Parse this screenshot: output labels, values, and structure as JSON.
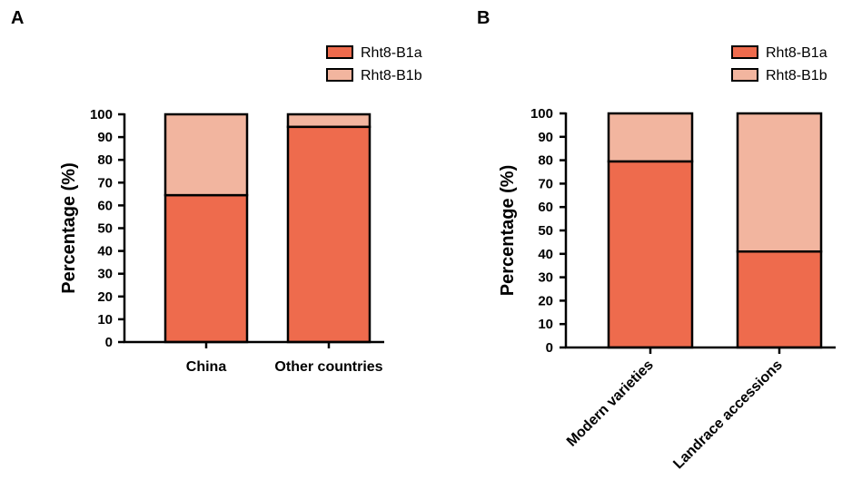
{
  "colors": {
    "rht8_b1a": "#EE6B4D",
    "rht8_b1b": "#F2B59F",
    "axis": "#000000"
  },
  "chart_data": [
    {
      "panel": "A",
      "type": "bar",
      "stacked": true,
      "categories": [
        "China",
        "Other countries"
      ],
      "series": [
        {
          "name": "Rht8-B1a",
          "values": [
            64.5,
            94.5
          ]
        },
        {
          "name": "Rht8-B1b",
          "values": [
            35.5,
            5.5
          ]
        }
      ],
      "ylabel": "Percentage (%)",
      "xlabel": "",
      "ylim": [
        0,
        100
      ],
      "yticks": [
        0,
        10,
        20,
        30,
        40,
        50,
        60,
        70,
        80,
        90,
        100
      ],
      "legend": "top-right",
      "category_label_rotation": 0
    },
    {
      "panel": "B",
      "type": "bar",
      "stacked": true,
      "categories": [
        "Modern varieties",
        "Landrace accessions"
      ],
      "series": [
        {
          "name": "Rht8-B1a",
          "values": [
            79.5,
            41
          ]
        },
        {
          "name": "Rht8-B1b",
          "values": [
            20.5,
            59
          ]
        }
      ],
      "ylabel": "Percentage (%)",
      "xlabel": "",
      "ylim": [
        0,
        100
      ],
      "yticks": [
        0,
        10,
        20,
        30,
        40,
        50,
        60,
        70,
        80,
        90,
        100
      ],
      "legend": "top-right",
      "category_label_rotation": -45
    }
  ]
}
